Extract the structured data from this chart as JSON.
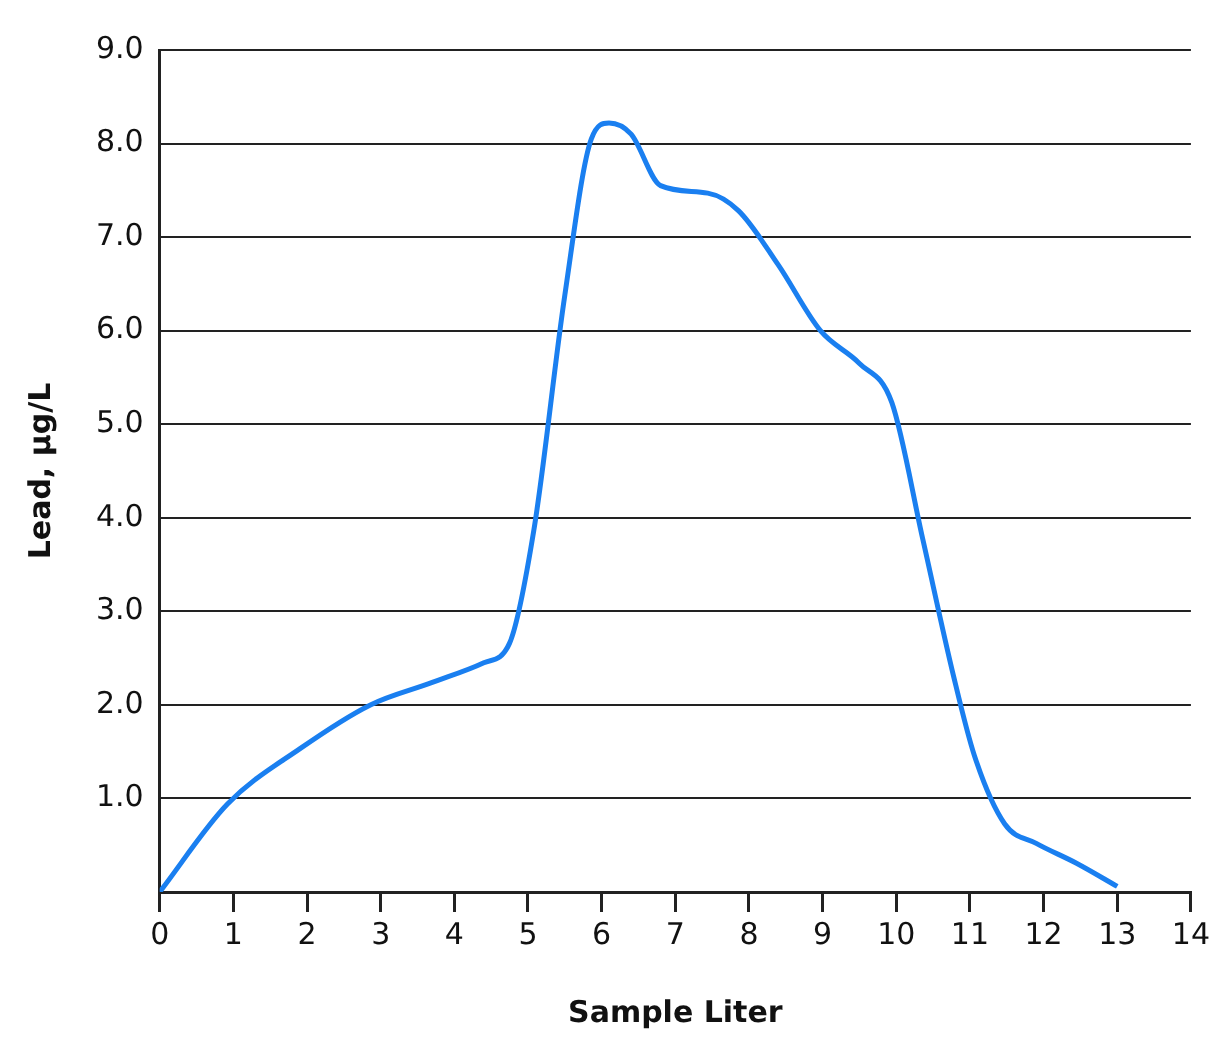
{
  "chart_data": {
    "type": "line",
    "xlabel": "Sample Liter",
    "ylabel": "Lead, µg/L",
    "series": [
      {
        "color": "#1a7ff0",
        "x": [
          0,
          0.92,
          1.9,
          2.86,
          3.7,
          4.4,
          4.75,
          5.08,
          5.5,
          5.86,
          6.1,
          6.4,
          6.8,
          7.44,
          7.86,
          8.4,
          8.97,
          9.5,
          9.94,
          10.36,
          10.78,
          11.06,
          11.47,
          11.9,
          12.44,
          13.0
        ],
        "values": [
          0,
          0.94,
          1.53,
          2.0,
          2.24,
          2.45,
          2.66,
          3.87,
          6.38,
          8.05,
          8.22,
          8.1,
          7.55,
          7.47,
          7.28,
          6.7,
          6.0,
          5.65,
          5.23,
          3.77,
          2.3,
          1.46,
          0.73,
          0.52,
          0.31,
          0.06
        ]
      }
    ],
    "xlim": [
      0,
      14
    ],
    "xticks": [
      0,
      1,
      2,
      3,
      4,
      5,
      6,
      7,
      8,
      9,
      10,
      11,
      12,
      13,
      14
    ],
    "ylim": [
      0,
      9
    ],
    "yticks": [
      {
        "value": 1,
        "label": "1.0"
      },
      {
        "value": 2,
        "label": "2.0"
      },
      {
        "value": 3,
        "label": "3.0"
      },
      {
        "value": 4,
        "label": "4.0"
      },
      {
        "value": 5,
        "label": "5.0"
      },
      {
        "value": 6,
        "label": "6.0"
      },
      {
        "value": 7,
        "label": "7.0"
      },
      {
        "value": 8,
        "label": "8.0"
      },
      {
        "value": 9,
        "label": "9.0"
      }
    ],
    "grid": "y",
    "legend": false,
    "marker": "none",
    "line_style": "solid"
  }
}
